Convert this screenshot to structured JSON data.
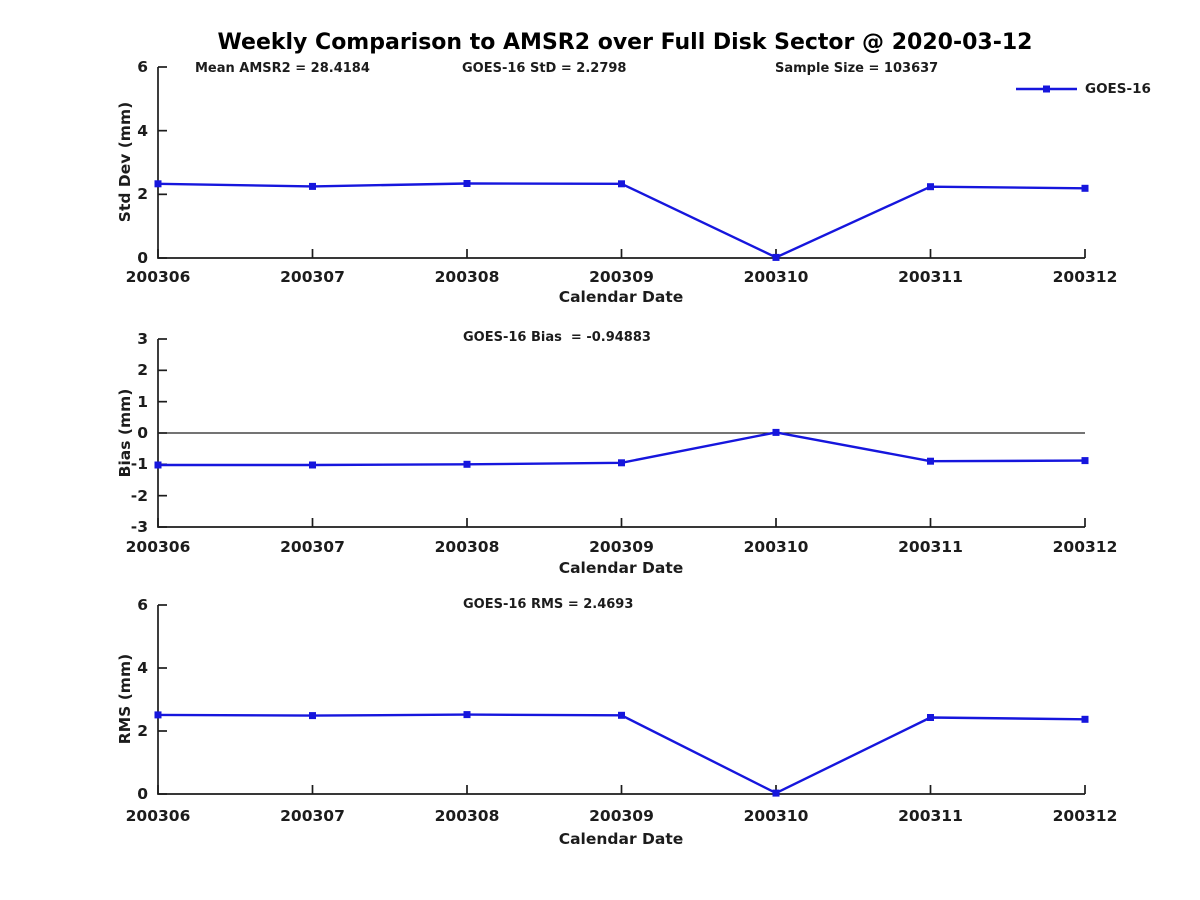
{
  "page": {
    "title": "Weekly Comparison to AMSR2 over Full Disk Sector @ 2020-03-12"
  },
  "legend": {
    "label": "GOES-16",
    "position": "top-right"
  },
  "colors": {
    "series": "#1616dd",
    "axis": "#1c1c1c",
    "zero_line": "#222222",
    "text": "#1c1c1c"
  },
  "stats": {
    "mean_amsr2": 28.4184,
    "goes16_std": 2.2798,
    "sample_size": 103637,
    "goes16_bias": -0.94883,
    "goes16_rms": 2.4693
  },
  "chart_data": [
    {
      "id": "std-dev",
      "type": "line",
      "categories": [
        "200306",
        "200307",
        "200308",
        "200309",
        "200310",
        "200311",
        "200312"
      ],
      "series": [
        {
          "name": "GOES-16",
          "values": [
            2.33,
            2.25,
            2.34,
            2.33,
            0.02,
            2.24,
            2.19
          ]
        }
      ],
      "ylabel": "Std Dev (mm)",
      "xlabel": "Calendar Date",
      "ylim": [
        0,
        6
      ],
      "yticks": [
        0,
        2,
        4,
        6
      ],
      "grid": false,
      "zero_line": false,
      "annotations": [
        {
          "text": "Mean AMSR2 = 28.4184"
        },
        {
          "text": "GOES-16 StD = 2.2798"
        },
        {
          "text": "Sample Size = 103637"
        }
      ]
    },
    {
      "id": "bias",
      "type": "line",
      "categories": [
        "200306",
        "200307",
        "200308",
        "200309",
        "200310",
        "200311",
        "200312"
      ],
      "series": [
        {
          "name": "GOES-16",
          "values": [
            -1.02,
            -1.02,
            -1.0,
            -0.95,
            0.02,
            -0.9,
            -0.88
          ]
        }
      ],
      "ylabel": "Bias (mm)",
      "xlabel": "Calendar Date",
      "ylim": [
        -3,
        3
      ],
      "yticks": [
        -3,
        -2,
        -1,
        0,
        1,
        2,
        3
      ],
      "grid": false,
      "zero_line": true,
      "annotations": [
        {
          "text": "GOES-16 Bias  = -0.94883"
        }
      ]
    },
    {
      "id": "rms",
      "type": "line",
      "categories": [
        "200306",
        "200307",
        "200308",
        "200309",
        "200310",
        "200311",
        "200312"
      ],
      "series": [
        {
          "name": "GOES-16",
          "values": [
            2.51,
            2.49,
            2.52,
            2.5,
            0.03,
            2.43,
            2.37
          ]
        }
      ],
      "ylabel": "RMS (mm)",
      "xlabel": "Calendar Date",
      "ylim": [
        0,
        6
      ],
      "yticks": [
        0,
        2,
        4,
        6
      ],
      "grid": false,
      "zero_line": false,
      "annotations": [
        {
          "text": "GOES-16 RMS = 2.4693"
        }
      ]
    }
  ]
}
